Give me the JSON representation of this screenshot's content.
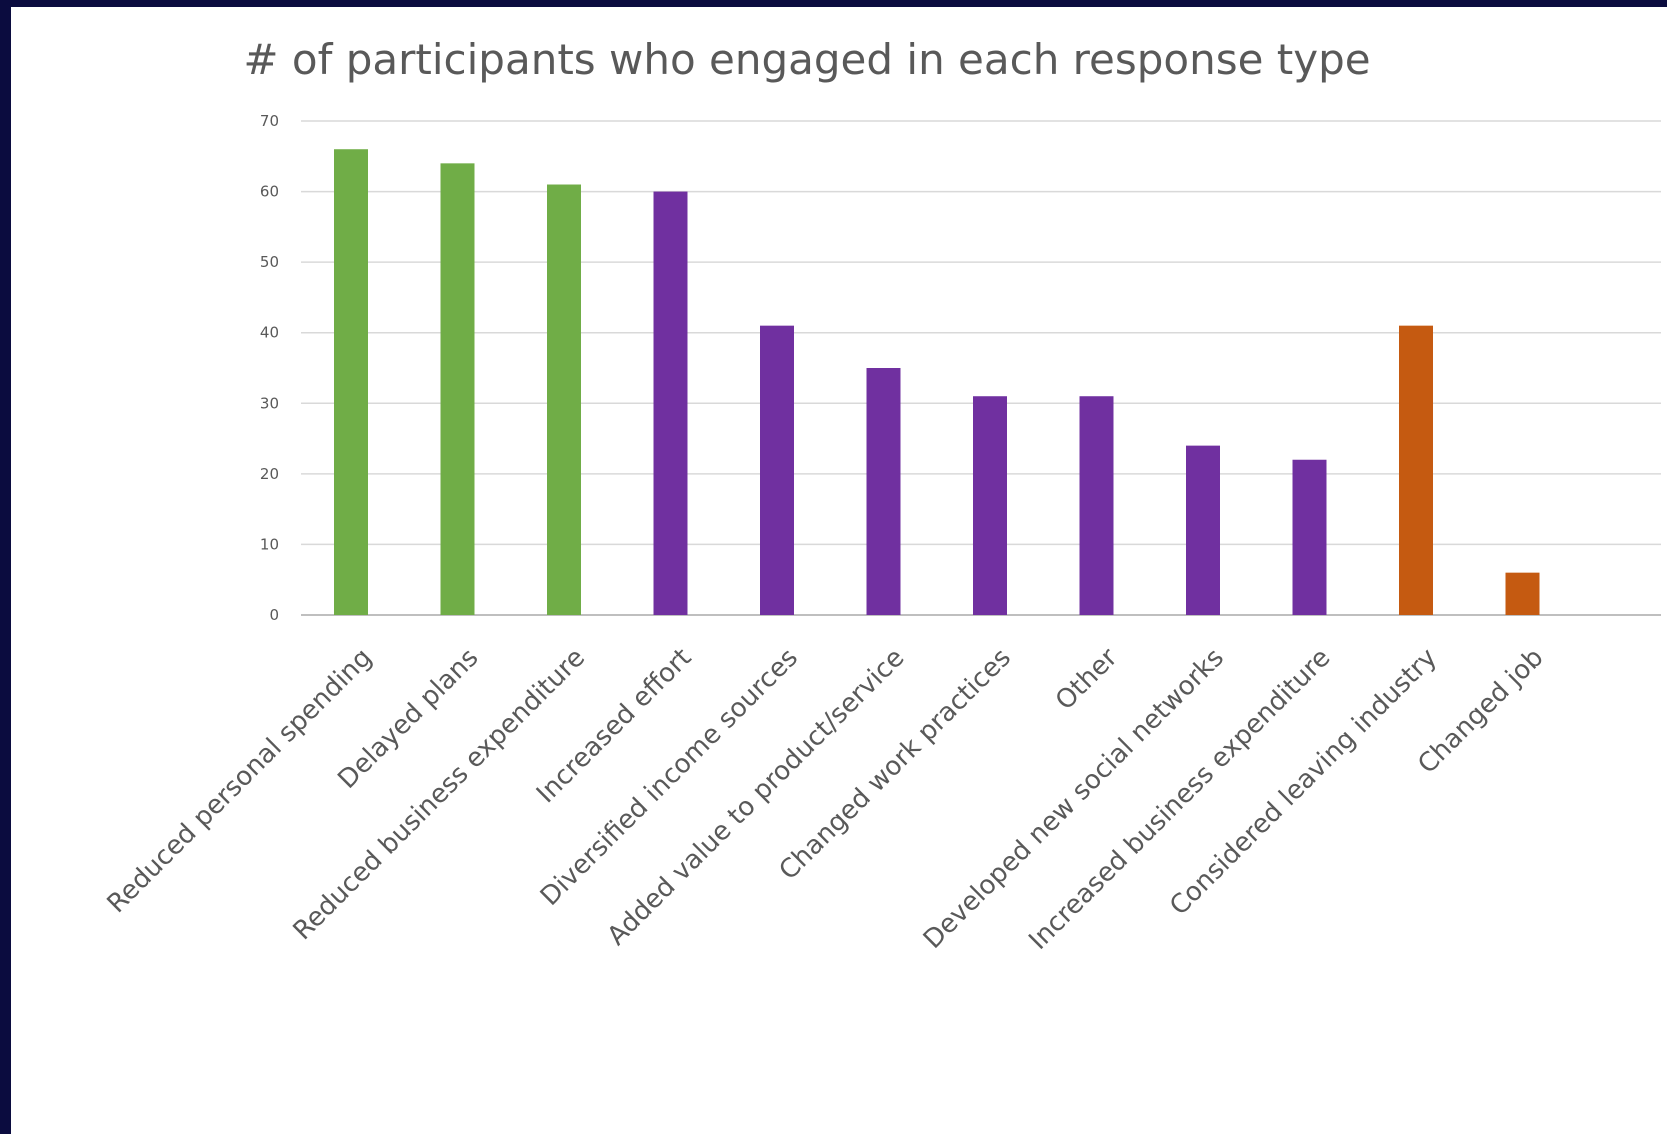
{
  "chart_data": {
    "type": "bar",
    "title": "# of participants who engaged in each response type",
    "xlabel": "",
    "ylabel": "",
    "ylim": [
      0,
      70
    ],
    "yticks": [
      0,
      10,
      20,
      30,
      40,
      50,
      60,
      70
    ],
    "grid": true,
    "legend": "none",
    "categories": [
      "Reduced personal spending",
      "Delayed plans",
      "Reduced business expenditure",
      "Increased effort",
      "Diversified income sources",
      "Added value to product/service",
      "Changed work practices",
      "Other",
      "Developed new social networks",
      "Increased business expenditure",
      "Considered leaving industry",
      "Changed job"
    ],
    "values": [
      66,
      64,
      61,
      60,
      41,
      35,
      31,
      31,
      24,
      22,
      41,
      6
    ],
    "bar_colors": [
      "#70ad47",
      "#70ad47",
      "#70ad47",
      "#7030a0",
      "#7030a0",
      "#7030a0",
      "#7030a0",
      "#7030a0",
      "#7030a0",
      "#7030a0",
      "#c55a11",
      "#c55a11"
    ]
  },
  "colors": {
    "page_background": "#0b0c3f",
    "panel_background": "#ffffff",
    "text": "#595959",
    "gridline": "#d9d9d9"
  }
}
